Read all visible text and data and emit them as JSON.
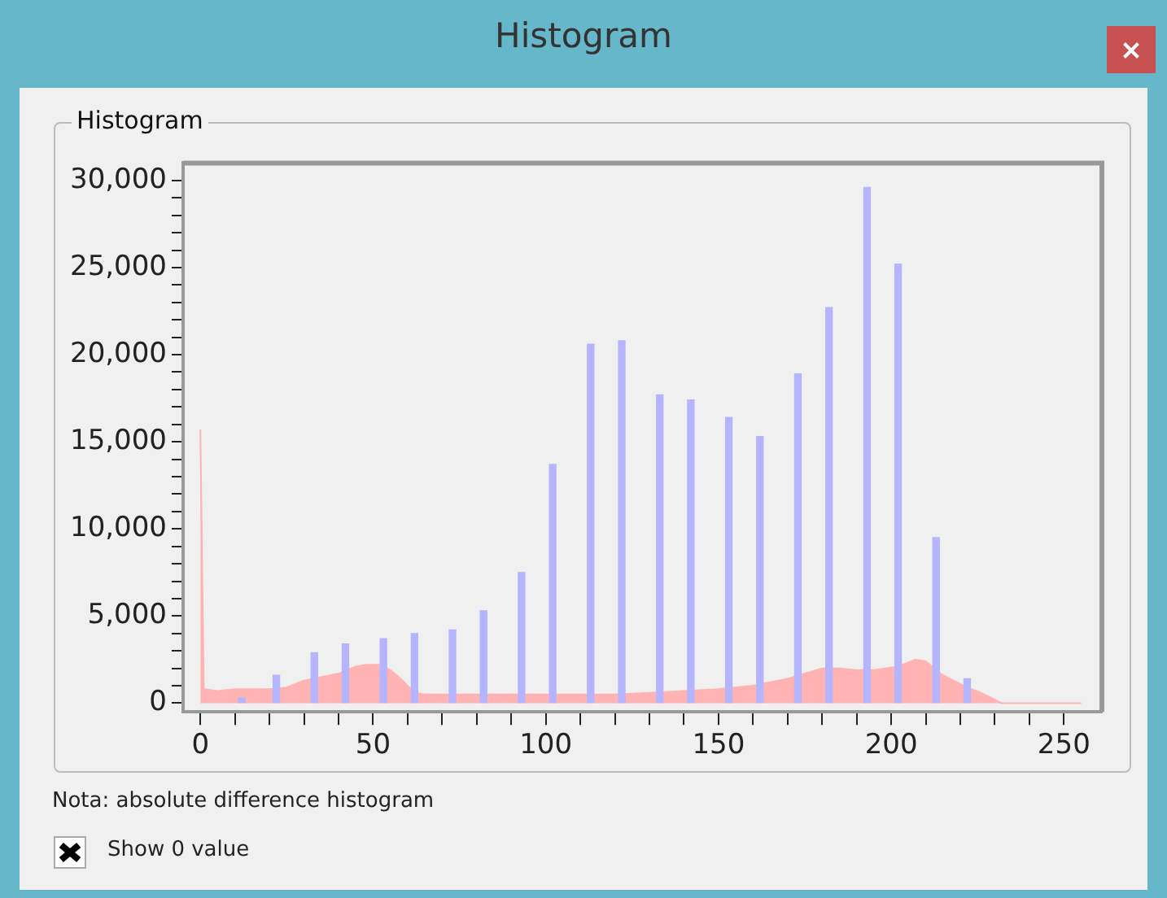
{
  "chart_data": {
    "type": "bar",
    "title": "Histogram",
    "subtitle": "Histogram",
    "annotations": [
      "Nota: absolute difference histogram",
      "Show 0 value"
    ],
    "xlim": [
      -5,
      261
    ],
    "ylim": [
      -500,
      31000
    ],
    "xticks": [
      0,
      {
        "value": 10,
        "label": null
      },
      {
        "value": 20,
        "label": null
      },
      {
        "value": 30,
        "label": null
      },
      {
        "value": 40,
        "label": null
      },
      50,
      {
        "value": 60,
        "label": null
      },
      {
        "value": 70,
        "label": null
      },
      {
        "value": 80,
        "label": null
      },
      {
        "value": 90,
        "label": null
      },
      100,
      {
        "value": 110,
        "label": null
      },
      {
        "value": 120,
        "label": null
      },
      {
        "value": 130,
        "label": null
      },
      {
        "value": 140,
        "label": null
      },
      150,
      {
        "value": 160,
        "label": null
      },
      {
        "value": 170,
        "label": null
      },
      {
        "value": 180,
        "label": null
      },
      {
        "value": 190,
        "label": null
      },
      200,
      {
        "value": 210,
        "label": null
      },
      {
        "value": 220,
        "label": null
      },
      {
        "value": 230,
        "label": null
      },
      {
        "value": 240,
        "label": null
      },
      250
    ],
    "yticks": [
      0,
      {
        "value": 1000,
        "label": null
      },
      {
        "value": 2000,
        "label": null
      },
      {
        "value": 3000,
        "label": null
      },
      {
        "value": 4000,
        "label": null
      },
      {
        "value": 5000,
        "label": "5,000"
      },
      {
        "value": 6000,
        "label": null
      },
      {
        "value": 7000,
        "label": null
      },
      {
        "value": 8000,
        "label": null
      },
      {
        "value": 9000,
        "label": null
      },
      {
        "value": 10000,
        "label": "10,000"
      },
      {
        "value": 11000,
        "label": null
      },
      {
        "value": 12000,
        "label": null
      },
      {
        "value": 13000,
        "label": null
      },
      {
        "value": 14000,
        "label": null
      },
      {
        "value": 15000,
        "label": "15,000"
      },
      {
        "value": 16000,
        "label": null
      },
      {
        "value": 17000,
        "label": null
      },
      {
        "value": 18000,
        "label": null
      },
      {
        "value": 19000,
        "label": null
      },
      {
        "value": 20000,
        "label": "20,000"
      },
      {
        "value": 21000,
        "label": null
      },
      {
        "value": 22000,
        "label": null
      },
      {
        "value": 23000,
        "label": null
      },
      {
        "value": 24000,
        "label": null
      },
      {
        "value": 25000,
        "label": "25,000"
      },
      {
        "value": 26000,
        "label": null
      },
      {
        "value": 27000,
        "label": null
      },
      {
        "value": 28000,
        "label": null
      },
      {
        "value": 29000,
        "label": null
      },
      {
        "value": 30000,
        "label": "30,000"
      }
    ],
    "grid": false,
    "legend": false,
    "series": [
      {
        "type": "area",
        "color": "#ffb3b3",
        "x": [
          0,
          1,
          5,
          10,
          15,
          20,
          25,
          30,
          35,
          40,
          45,
          48,
          52,
          55,
          58,
          62,
          65,
          70,
          80,
          90,
          100,
          110,
          120,
          130,
          140,
          150,
          160,
          165,
          170,
          175,
          180,
          185,
          190,
          195,
          202,
          207,
          210,
          215,
          222,
          226,
          232,
          255
        ],
        "values": [
          15700,
          800,
          700,
          800,
          800,
          800,
          900,
          1300,
          1500,
          1700,
          2100,
          2200,
          2200,
          1900,
          1400,
          600,
          500,
          500,
          500,
          500,
          500,
          500,
          500,
          600,
          700,
          800,
          1000,
          1200,
          1400,
          1700,
          2000,
          2000,
          1900,
          1900,
          2100,
          2500,
          2400,
          1600,
          900,
          600,
          0,
          0
        ]
      },
      {
        "color": "#b4b4ff",
        "x": [
          12,
          22,
          33,
          42,
          53,
          62,
          73,
          82,
          93,
          102,
          113,
          122,
          133,
          142,
          153,
          162,
          173,
          182,
          193,
          202,
          213,
          222
        ],
        "values": [
          300,
          1600,
          2900,
          3400,
          3700,
          4000,
          4200,
          5300,
          7500,
          13700,
          20600,
          20800,
          17700,
          17400,
          16400,
          15300,
          18900,
          22700,
          29600,
          25200,
          9500,
          1400
        ]
      }
    ]
  }
}
